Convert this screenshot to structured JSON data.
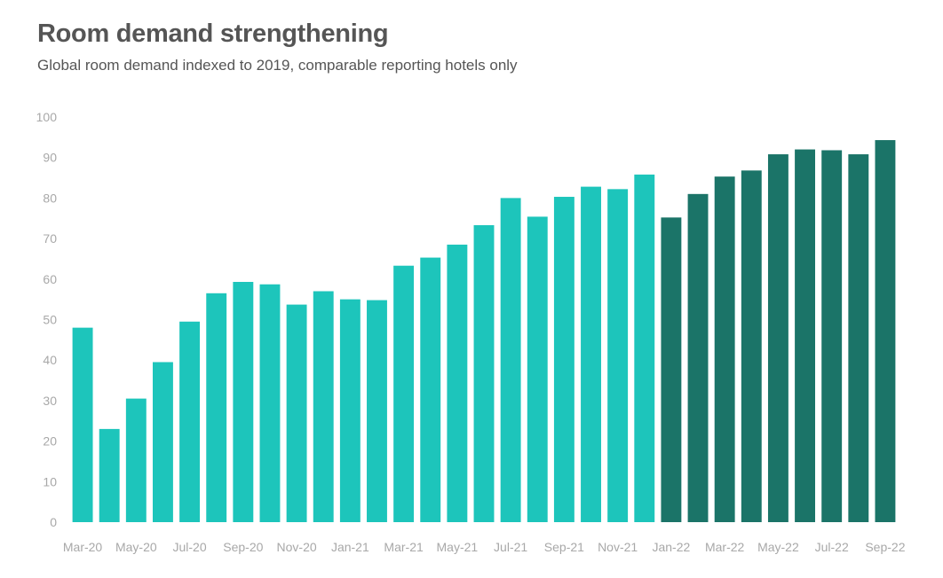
{
  "chart_data": {
    "type": "bar",
    "title": "Room demand strengthening",
    "subtitle": "Global room demand indexed to 2019, comparable reporting hotels only",
    "xlabel": "",
    "ylabel": "",
    "ylim": [
      0,
      100
    ],
    "yticks": [
      0,
      10,
      20,
      30,
      40,
      50,
      60,
      70,
      80,
      90,
      100
    ],
    "grid": false,
    "categories": [
      "Mar-20",
      "Apr-20",
      "May-20",
      "Jun-20",
      "Jul-20",
      "Aug-20",
      "Sep-20",
      "Oct-20",
      "Nov-20",
      "Dec-20",
      "Jan-21",
      "Feb-21",
      "Mar-21",
      "Apr-21",
      "May-21",
      "Jun-21",
      "Jul-21",
      "Aug-21",
      "Sep-21",
      "Oct-21",
      "Nov-21",
      "Dec-21",
      "Jan-22",
      "Feb-22",
      "Mar-22",
      "Apr-22",
      "May-22",
      "Jun-22",
      "Jul-22",
      "Aug-22",
      "Sep-22"
    ],
    "tick_labels": [
      "Mar-20",
      "May-20",
      "Jul-20",
      "Sep-20",
      "Nov-20",
      "Jan-21",
      "Mar-21",
      "May-21",
      "Jul-21",
      "Sep-21",
      "Nov-21",
      "Jan-22",
      "Mar-22",
      "May-22",
      "Jul-22",
      "Sep-22"
    ],
    "values": [
      48,
      23,
      30.5,
      39.5,
      49.5,
      56.5,
      59.3,
      58.7,
      53.7,
      57,
      55,
      54.8,
      63.3,
      65.3,
      68.5,
      73.3,
      80,
      75.4,
      80.3,
      82.8,
      82.2,
      85.8,
      75.2,
      81,
      85.3,
      86.8,
      90.8,
      92,
      91.8,
      90.8,
      94.3
    ],
    "colors": {
      "2020-2021": "#1dc5bb",
      "2022": "#1b7468"
    }
  }
}
